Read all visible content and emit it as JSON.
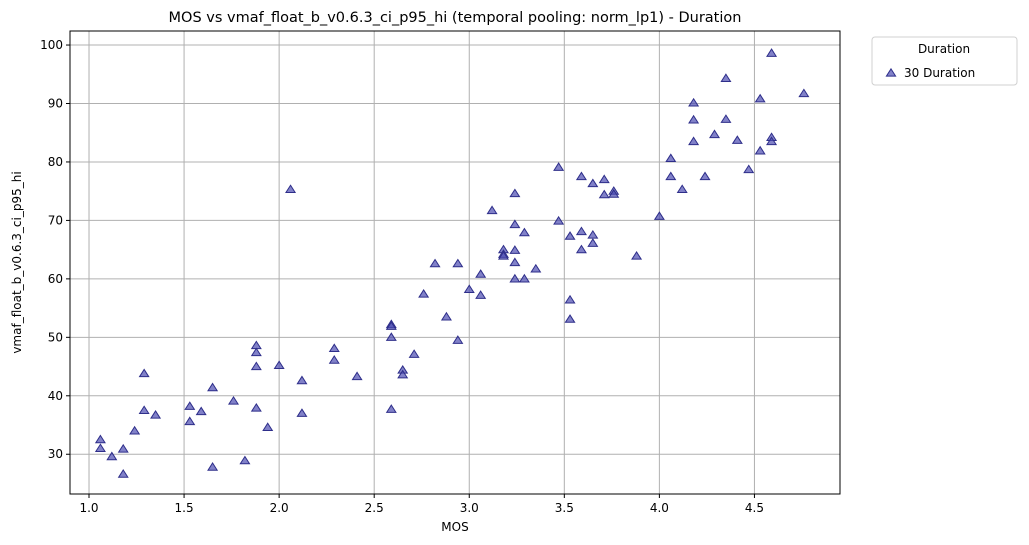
{
  "chart_data": {
    "type": "scatter",
    "title": "MOS vs vmaf_float_b_v0.6.3_ci_p95_hi (temporal pooling: norm_lp1) - Duration",
    "xlabel": "MOS",
    "ylabel": "vmaf_float_b_v0.6.3_ci_p95_hi",
    "xlim": [
      0.9,
      4.95
    ],
    "ylim": [
      23.2,
      102.4
    ],
    "xticks": [
      "1.0",
      "1.5",
      "2.0",
      "2.5",
      "3.0",
      "3.5",
      "4.0",
      "4.5"
    ],
    "yticks": [
      "30",
      "40",
      "50",
      "60",
      "70",
      "80",
      "90",
      "100"
    ],
    "grid": true,
    "legend": {
      "title": "Duration",
      "placement": "outside-top-right"
    },
    "series": [
      {
        "name": "30 Duration",
        "color": "#4b4bb0",
        "edgecolor": "#2e2e8a",
        "marker": "triangle-up",
        "points": [
          [
            1.06,
            32.5
          ],
          [
            1.06,
            31.0
          ],
          [
            1.12,
            29.6
          ],
          [
            1.18,
            30.9
          ],
          [
            1.18,
            26.6
          ],
          [
            1.24,
            34.0
          ],
          [
            1.29,
            37.5
          ],
          [
            1.29,
            43.8
          ],
          [
            1.35,
            36.7
          ],
          [
            1.53,
            38.2
          ],
          [
            1.53,
            35.6
          ],
          [
            1.59,
            37.3
          ],
          [
            1.65,
            41.4
          ],
          [
            1.65,
            27.8
          ],
          [
            1.76,
            39.1
          ],
          [
            1.82,
            28.9
          ],
          [
            1.88,
            48.6
          ],
          [
            1.88,
            47.4
          ],
          [
            1.88,
            45.0
          ],
          [
            1.88,
            37.9
          ],
          [
            1.94,
            34.6
          ],
          [
            2.0,
            45.2
          ],
          [
            2.06,
            75.3
          ],
          [
            2.12,
            42.6
          ],
          [
            2.12,
            37.0
          ],
          [
            2.29,
            48.1
          ],
          [
            2.29,
            46.1
          ],
          [
            2.41,
            43.3
          ],
          [
            2.59,
            52.2
          ],
          [
            2.59,
            51.9
          ],
          [
            2.59,
            50.0
          ],
          [
            2.59,
            37.7
          ],
          [
            2.65,
            44.4
          ],
          [
            2.65,
            43.6
          ],
          [
            2.71,
            47.1
          ],
          [
            2.76,
            57.4
          ],
          [
            2.82,
            62.6
          ],
          [
            2.88,
            53.5
          ],
          [
            2.94,
            62.6
          ],
          [
            2.94,
            49.5
          ],
          [
            3.0,
            58.2
          ],
          [
            3.06,
            60.8
          ],
          [
            3.06,
            57.2
          ],
          [
            3.12,
            71.7
          ],
          [
            3.18,
            65.0
          ],
          [
            3.18,
            64.2
          ],
          [
            3.18,
            63.9
          ],
          [
            3.24,
            74.6
          ],
          [
            3.24,
            69.3
          ],
          [
            3.24,
            64.9
          ],
          [
            3.24,
            62.8
          ],
          [
            3.24,
            60.0
          ],
          [
            3.29,
            67.9
          ],
          [
            3.29,
            60.0
          ],
          [
            3.35,
            61.7
          ],
          [
            3.47,
            79.1
          ],
          [
            3.47,
            69.9
          ],
          [
            3.53,
            67.3
          ],
          [
            3.53,
            56.4
          ],
          [
            3.53,
            53.1
          ],
          [
            3.59,
            77.5
          ],
          [
            3.59,
            68.1
          ],
          [
            3.59,
            65.0
          ],
          [
            3.65,
            76.3
          ],
          [
            3.65,
            67.5
          ],
          [
            3.65,
            66.1
          ],
          [
            3.71,
            77.0
          ],
          [
            3.71,
            74.4
          ],
          [
            3.76,
            75.0
          ],
          [
            3.76,
            74.5
          ],
          [
            3.88,
            63.9
          ],
          [
            4.0,
            70.7
          ],
          [
            4.06,
            80.6
          ],
          [
            4.06,
            77.5
          ],
          [
            4.12,
            75.3
          ],
          [
            4.18,
            90.1
          ],
          [
            4.18,
            87.2
          ],
          [
            4.18,
            83.5
          ],
          [
            4.24,
            77.5
          ],
          [
            4.29,
            84.7
          ],
          [
            4.35,
            94.3
          ],
          [
            4.35,
            87.3
          ],
          [
            4.41,
            83.7
          ],
          [
            4.47,
            78.7
          ],
          [
            4.53,
            90.8
          ],
          [
            4.53,
            81.9
          ],
          [
            4.59,
            98.6
          ],
          [
            4.59,
            84.2
          ],
          [
            4.59,
            83.5
          ],
          [
            4.76,
            91.7
          ]
        ]
      }
    ]
  }
}
